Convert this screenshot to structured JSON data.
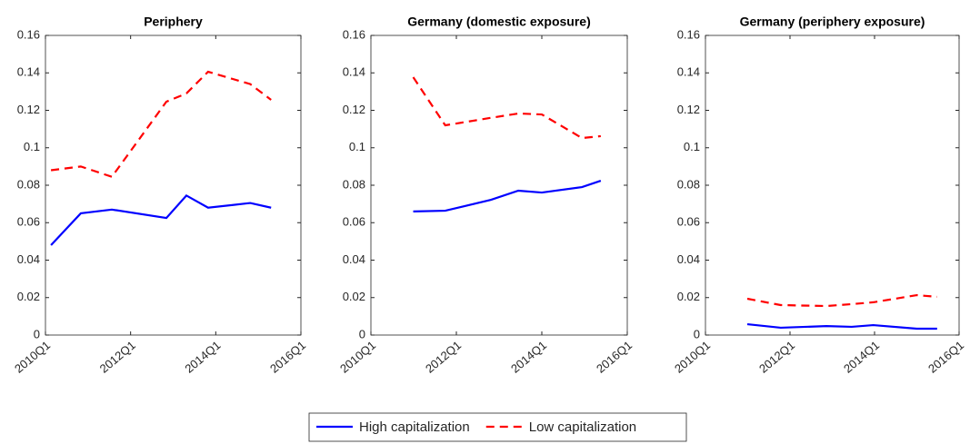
{
  "chart_data": [
    {
      "type": "line",
      "title": "Periphery",
      "x": [
        2010.13,
        2010.83,
        2011.56,
        2012.84,
        2013.31,
        2013.82,
        2014.81,
        2015.3
      ],
      "series": [
        {
          "name": "High capitalization",
          "color": "#0000ff",
          "linestyle": "solid",
          "values": [
            0.048,
            0.065,
            0.067,
            0.0625,
            0.0745,
            0.068,
            0.0705,
            0.068
          ]
        },
        {
          "name": "Low capitalization",
          "color": "#ff0000",
          "linestyle": "dashed",
          "values": [
            0.088,
            0.09,
            0.0845,
            0.1246,
            0.129,
            0.1406,
            0.134,
            0.1256
          ]
        }
      ],
      "xlim": [
        2010,
        2016
      ],
      "xticks": [
        {
          "value": 2010,
          "label": "2010Q1"
        },
        {
          "value": 2012,
          "label": "2012Q1"
        },
        {
          "value": 2014,
          "label": "2014Q1"
        },
        {
          "value": 2016,
          "label": "2016Q1"
        }
      ],
      "ylim": [
        0,
        0.16
      ],
      "yticks": [
        0,
        0.02,
        0.04,
        0.06,
        0.08,
        0.1,
        0.12,
        0.14,
        0.16
      ],
      "grid": false
    },
    {
      "type": "line",
      "title": "Germany (domestic exposure)",
      "x": [
        2010.99,
        2011.74,
        2012.81,
        2013.45,
        2014.0,
        2014.94,
        2015.38
      ],
      "series": [
        {
          "color": "#0000ff",
          "linestyle": "solid",
          "values": [
            0.066,
            0.0664,
            0.0722,
            0.0771,
            0.0761,
            0.079,
            0.0824
          ]
        },
        {
          "color": "#ff0000",
          "linestyle": "dashed",
          "values": [
            0.1377,
            0.112,
            0.116,
            0.1183,
            0.1178,
            0.1052,
            0.1062
          ]
        }
      ],
      "xlim": [
        2010,
        2016
      ],
      "xticks": [
        {
          "value": 2010,
          "label": "2010Q1"
        },
        {
          "value": 2012,
          "label": "2012Q1"
        },
        {
          "value": 2014,
          "label": "2014Q1"
        },
        {
          "value": 2016,
          "label": "2016Q1"
        }
      ],
      "ylim": [
        0,
        0.16
      ],
      "yticks": [
        0,
        0.02,
        0.04,
        0.06,
        0.08,
        0.1,
        0.12,
        0.14,
        0.16
      ],
      "grid": false
    },
    {
      "type": "line",
      "title": "Germany (periphery exposure)",
      "x": [
        2010.99,
        2011.78,
        2012.86,
        2013.46,
        2013.97,
        2015.0,
        2015.48
      ],
      "series": [
        {
          "color": "#0000ff",
          "linestyle": "solid",
          "values": [
            0.0058,
            0.0039,
            0.0048,
            0.0044,
            0.0053,
            0.0034,
            0.0034
          ]
        },
        {
          "color": "#ff0000",
          "linestyle": "dashed",
          "values": [
            0.0194,
            0.016,
            0.0155,
            0.0165,
            0.0175,
            0.0213,
            0.0204
          ]
        }
      ],
      "xlim": [
        2010,
        2016
      ],
      "xticks": [
        {
          "value": 2010,
          "label": "2010Q1"
        },
        {
          "value": 2012,
          "label": "2012Q1"
        },
        {
          "value": 2014,
          "label": "2014Q1"
        },
        {
          "value": 2016,
          "label": "2016Q1"
        }
      ],
      "ylim": [
        0,
        0.16
      ],
      "yticks": [
        0,
        0.02,
        0.04,
        0.06,
        0.08,
        0.1,
        0.12,
        0.14,
        0.16
      ],
      "grid": false
    }
  ]
}
